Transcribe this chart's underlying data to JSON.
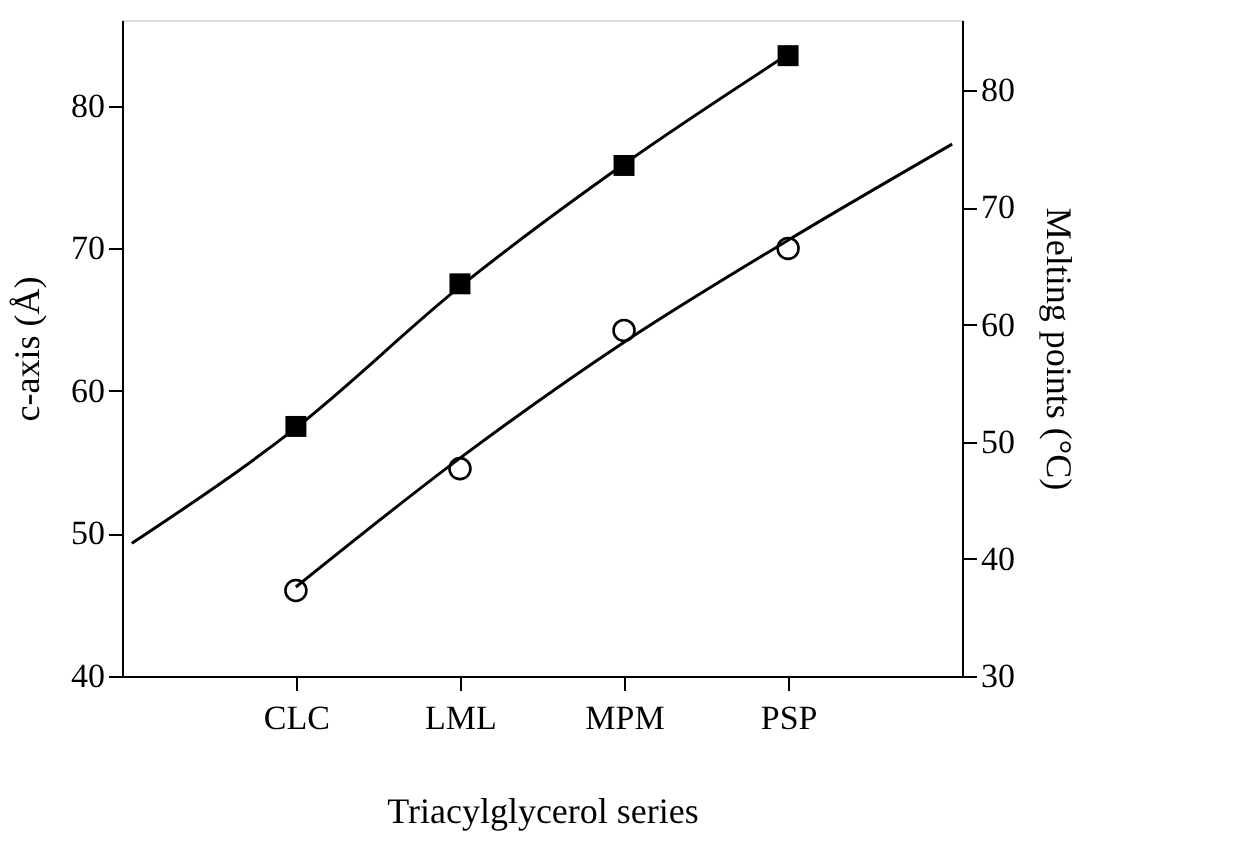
{
  "chart_data": {
    "type": "scatter",
    "xlabel": "Triacylglycerol series",
    "ylabel": "c-axis (Å)",
    "y2label": "Melting points (°C)",
    "categories": [
      null,
      "CLC",
      "LML",
      "MPM",
      "PSP",
      null
    ],
    "ylim": [
      40,
      86
    ],
    "yticks": [
      40,
      50,
      60,
      70,
      80
    ],
    "y2lim": [
      30,
      86
    ],
    "y2ticks": [
      30,
      40,
      50,
      60,
      70,
      80
    ],
    "grid": false,
    "series": [
      {
        "type": "scatter",
        "marker": "square",
        "color": "#000000",
        "values": [
          null,
          57.5,
          67.5,
          75.8,
          83.5,
          null
        ]
      },
      {
        "type": "line",
        "marker": "none",
        "color": "#000000",
        "values": [
          49.3,
          57.4,
          67.3,
          75.9,
          83.6,
          null
        ]
      },
      {
        "type": "scatter",
        "marker": "circle",
        "color": "#000000",
        "axis": "y2",
        "values": [
          null,
          37.3,
          47.7,
          59.5,
          66.5,
          null
        ]
      },
      {
        "type": "line",
        "marker": "none",
        "color": "#000000",
        "axis": "y2",
        "values": [
          null,
          37.6,
          48.6,
          58.5,
          67.2,
          75.4
        ]
      }
    ]
  }
}
